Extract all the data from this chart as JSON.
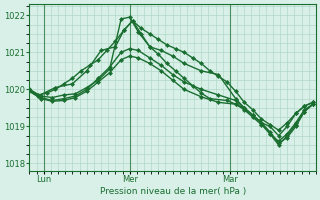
{
  "title": "Pression niveau de la mer( hPa )",
  "ylabel_ticks": [
    1018,
    1019,
    1020,
    1021,
    1022
  ],
  "ylim": [
    1017.8,
    1022.3
  ],
  "xlim": [
    0,
    100
  ],
  "bg_color": "#d8f0e8",
  "grid_color": "#b0d8c8",
  "line_color": "#1a6e30",
  "marker": "D",
  "markersize": 2.0,
  "linewidth": 1.0,
  "x_ticks": [
    5,
    35,
    70
  ],
  "x_tick_labels": [
    "Lun",
    "Mer",
    "Mar"
  ],
  "vlines": [
    5,
    35,
    70
  ],
  "series": [
    [
      0,
      1020.0,
      3,
      1019.85,
      6,
      1019.9,
      9,
      1020.0,
      12,
      1020.15,
      15,
      1020.3,
      18,
      1020.5,
      21,
      1020.65,
      24,
      1020.8,
      27,
      1021.05,
      30,
      1021.3,
      33,
      1021.6,
      36,
      1021.85,
      39,
      1021.65,
      42,
      1021.5,
      45,
      1021.35,
      48,
      1021.2,
      51,
      1021.1,
      54,
      1021.0,
      57,
      1020.85,
      60,
      1020.7,
      63,
      1020.5,
      66,
      1020.35,
      69,
      1020.2,
      72,
      1019.95,
      75,
      1019.65,
      78,
      1019.45,
      81,
      1019.2,
      84,
      1019.05,
      87,
      1018.9,
      90,
      1019.1,
      93,
      1019.35,
      96,
      1019.55,
      99,
      1019.65
    ],
    [
      0,
      1019.95,
      3,
      1019.82,
      9,
      1020.05,
      15,
      1020.15,
      20,
      1020.5,
      25,
      1021.05,
      30,
      1021.15,
      33,
      1021.6,
      36,
      1021.85,
      39,
      1021.5,
      42,
      1021.15,
      45,
      1020.95,
      48,
      1020.7,
      51,
      1020.5,
      54,
      1020.3,
      57,
      1020.1,
      60,
      1019.9,
      63,
      1019.75,
      69,
      1019.7,
      72,
      1019.6,
      75,
      1019.5,
      78,
      1019.3,
      81,
      1019.1,
      84,
      1019.0,
      87,
      1018.75,
      90,
      1019.0,
      93,
      1019.35,
      96,
      1019.55,
      99,
      1019.65
    ],
    [
      0,
      1020.0,
      4,
      1019.82,
      8,
      1019.78,
      12,
      1019.85,
      16,
      1019.88,
      20,
      1020.05,
      24,
      1020.25,
      28,
      1020.55,
      32,
      1021.9,
      35,
      1021.95,
      38,
      1021.55,
      42,
      1021.15,
      46,
      1021.05,
      50,
      1020.9,
      54,
      1020.7,
      60,
      1020.5,
      66,
      1020.4,
      72,
      1019.75,
      75,
      1019.5,
      78,
      1019.3,
      81,
      1019.1,
      84,
      1018.85,
      87,
      1018.55,
      90,
      1018.7,
      93,
      1019.0,
      96,
      1019.4,
      99,
      1019.6
    ],
    [
      0,
      1020.0,
      4,
      1019.78,
      8,
      1019.7,
      12,
      1019.75,
      16,
      1019.82,
      20,
      1020.0,
      24,
      1020.3,
      28,
      1020.6,
      32,
      1021.0,
      35,
      1021.1,
      38,
      1021.05,
      42,
      1020.85,
      46,
      1020.65,
      50,
      1020.4,
      54,
      1020.2,
      60,
      1020.0,
      66,
      1019.85,
      72,
      1019.7,
      75,
      1019.5,
      78,
      1019.3,
      81,
      1019.1,
      84,
      1018.8,
      87,
      1018.6,
      90,
      1018.8,
      93,
      1019.1,
      96,
      1019.45,
      99,
      1019.6
    ],
    [
      0,
      1019.95,
      4,
      1019.75,
      8,
      1019.68,
      12,
      1019.7,
      16,
      1019.78,
      20,
      1019.95,
      24,
      1020.2,
      28,
      1020.45,
      32,
      1020.8,
      35,
      1020.9,
      38,
      1020.85,
      42,
      1020.7,
      46,
      1020.5,
      50,
      1020.25,
      54,
      1020.0,
      60,
      1019.8,
      66,
      1019.65,
      72,
      1019.6,
      75,
      1019.45,
      78,
      1019.25,
      81,
      1019.05,
      84,
      1018.8,
      87,
      1018.5,
      90,
      1018.75,
      93,
      1019.05,
      96,
      1019.4,
      99,
      1019.6
    ]
  ]
}
